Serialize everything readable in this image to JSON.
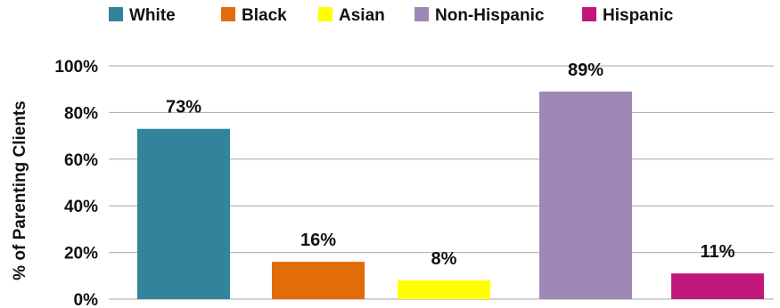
{
  "chart_data": {
    "type": "bar",
    "categories": [
      "White",
      "Black",
      "Asian",
      "Non-Hispanic",
      "Hispanic"
    ],
    "values": [
      73,
      16,
      8,
      89,
      11
    ],
    "value_labels": [
      "73%",
      "16%",
      "8%",
      "89%",
      "11%"
    ],
    "colors": [
      "#31849b",
      "#e36c0a",
      "#ffff00",
      "#9f88b5",
      "#c2177a"
    ],
    "ylabel": "% of Parenting Clients",
    "xlabel": "",
    "ylim": [
      0,
      100
    ],
    "yticks": [
      0,
      20,
      40,
      60,
      80,
      100
    ],
    "ytick_labels": [
      "0%",
      "20%",
      "40%",
      "60%",
      "80%",
      "100%"
    ],
    "grid": true,
    "legend_position": "top",
    "legend": [
      {
        "label": "White",
        "color": "#31849b"
      },
      {
        "label": "Black",
        "color": "#e36c0a"
      },
      {
        "label": "Asian",
        "color": "#ffff00"
      },
      {
        "label": "Non-Hispanic",
        "color": "#9f88b5"
      },
      {
        "label": "Hispanic",
        "color": "#c2177a"
      }
    ]
  }
}
